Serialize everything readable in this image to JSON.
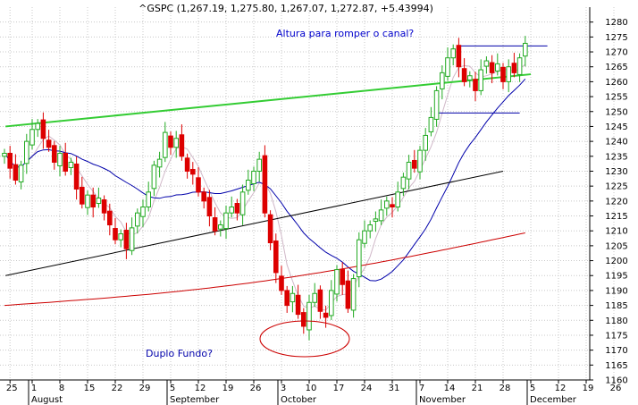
{
  "chart_data": {
    "type": "candlestick",
    "title": "^GSPC (1,267.19, 1,275.80, 1,267.07, 1,272.87, +5.43994)",
    "ylim": [
      1160,
      1285
    ],
    "y_ticks": [
      1160,
      1165,
      1170,
      1175,
      1180,
      1185,
      1190,
      1195,
      1200,
      1205,
      1210,
      1215,
      1220,
      1225,
      1230,
      1235,
      1240,
      1245,
      1250,
      1255,
      1260,
      1265,
      1270,
      1275,
      1280
    ],
    "x_day_labels": [
      "25",
      "1",
      "8",
      "15",
      "22",
      "29",
      "5",
      "12",
      "19",
      "26",
      "3",
      "10",
      "17",
      "24",
      "31",
      "7",
      "14",
      "21",
      "28",
      "5",
      "12",
      "19",
      "26"
    ],
    "x_month_labels": [
      "August",
      "September",
      "October",
      "November",
      "December"
    ],
    "annotations": {
      "channel": "Altura para romper o canal?",
      "double_bottom": "Duplo Fundo?"
    },
    "colors": {
      "up": "#22aa22",
      "down": "#dd0000",
      "ma_fast": "#d0b8c8",
      "ma_mid": "#0000aa",
      "ma_slow": "#cc0000",
      "trend_green": "#33cc33",
      "trend_black": "#000000",
      "channel_lines": "#0000aa",
      "ellipse": "#cc0000",
      "annotation_channel": "#0000cc",
      "annotation_double_bottom": "#0000aa"
    },
    "closes": [
      1236,
      1231,
      1227,
      1232,
      1240,
      1244,
      1246,
      1241,
      1238,
      1233,
      1236,
      1230,
      1233,
      1224,
      1219,
      1222,
      1218,
      1221,
      1216,
      1212,
      1207,
      1209,
      1204,
      1211,
      1216,
      1218,
      1223,
      1232,
      1234,
      1243,
      1238,
      1241,
      1235,
      1230,
      1229,
      1223,
      1220,
      1215,
      1210,
      1212,
      1216,
      1218,
      1216,
      1223,
      1227,
      1230,
      1234,
      1216,
      1206,
      1196,
      1190,
      1185,
      1189,
      1182,
      1178,
      1186,
      1189,
      1183,
      1181,
      1190,
      1197,
      1192,
      1184,
      1194,
      1207,
      1210,
      1212,
      1214,
      1217,
      1220,
      1218,
      1223,
      1228,
      1233,
      1231,
      1237,
      1242,
      1248,
      1257,
      1263,
      1268,
      1271,
      1265,
      1260,
      1262,
      1257,
      1264,
      1267,
      1263,
      1266,
      1260,
      1265,
      1263,
      1268,
      1272.87
    ],
    "trendlines": {
      "green_resistance": {
        "start": [
          1,
          1245
        ],
        "end": [
          95,
          1262.5
        ]
      },
      "black_support": {
        "start": [
          1,
          1195
        ],
        "end": [
          90,
          1230
        ]
      },
      "channel_top": {
        "from": 82,
        "to": 98,
        "y": 1272
      },
      "channel_bottom": {
        "from": 78,
        "to": 93,
        "y": 1249.5
      }
    }
  }
}
